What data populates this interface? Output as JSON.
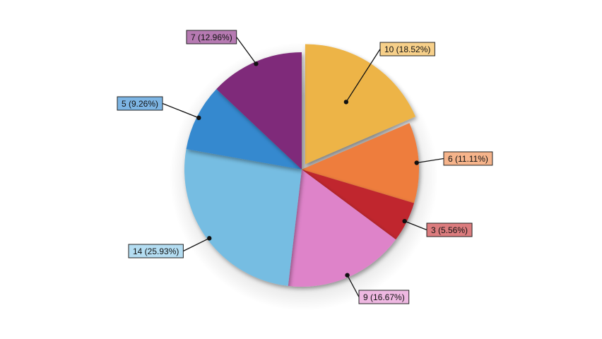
{
  "chart_data": {
    "type": "pie",
    "title": "",
    "start_angle_deg": 0,
    "direction": "clockwise",
    "legend": "none",
    "slices": [
      {
        "value": 10,
        "label": "10 (18.52%)",
        "color": "#EDB446",
        "label_bg": "#F7D08A",
        "exploded": true
      },
      {
        "value": 6,
        "label": "6 (11.11%)",
        "color": "#EE7D3D",
        "label_bg": "#F6B48B",
        "exploded": false
      },
      {
        "value": 3,
        "label": "3 (5.56%)",
        "color": "#C0272D",
        "label_bg": "#DC7C7E",
        "exploded": false
      },
      {
        "value": 9,
        "label": "9 (16.67%)",
        "color": "#DE83C9",
        "label_bg": "#EEB8E1",
        "exploded": false
      },
      {
        "value": 14,
        "label": "14 (25.93%)",
        "color": "#76BDE2",
        "label_bg": "#B4DDF2",
        "exploded": false
      },
      {
        "value": 5,
        "label": "5 (9.26%)",
        "color": "#3589CF",
        "label_bg": "#7DB5E4",
        "exploded": false
      },
      {
        "value": 7,
        "label": "7 (12.96%)",
        "color": "#7F2C7A",
        "label_bg": "#B67AB2",
        "exploded": false
      }
    ]
  }
}
